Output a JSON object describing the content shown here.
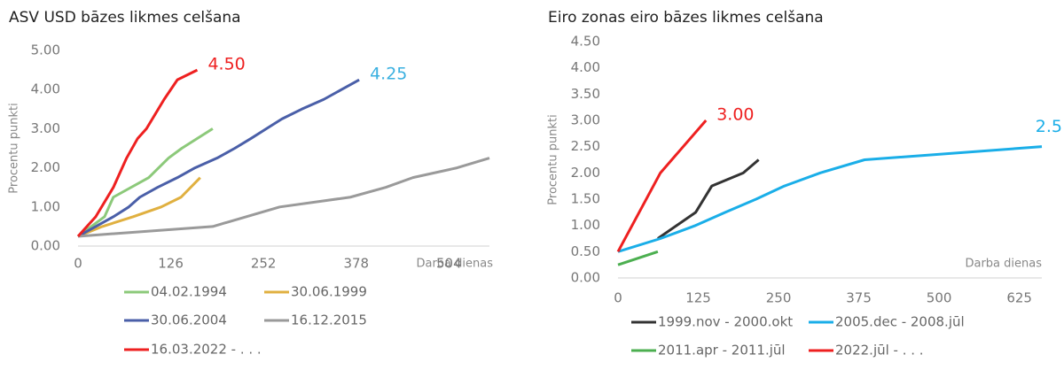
{
  "chart_data": [
    {
      "type": "line",
      "title": "ASV USD bāzes likmes celšana",
      "y_label": "Procentu punkti",
      "x_label": "Darba dienas",
      "xlim": [
        0,
        559
      ],
      "xticks": [
        0,
        126,
        252,
        378,
        504
      ],
      "ylim": [
        0,
        5
      ],
      "yticks": [
        {
          "value": 0,
          "label": "0.00"
        },
        {
          "value": 1,
          "label": "1.00"
        },
        {
          "value": 2,
          "label": "2.00"
        },
        {
          "value": 3,
          "label": "3.00"
        },
        {
          "value": 4,
          "label": "4.00"
        },
        {
          "value": 5,
          "label": "5.00"
        }
      ],
      "series": [
        {
          "name": "04.02.1994",
          "color": "#8cc97a",
          "x": [
            0,
            36,
            48,
            96,
            123,
            141,
            183
          ],
          "values": [
            0.25,
            0.75,
            1.25,
            1.75,
            2.25,
            2.5,
            3.0
          ]
        },
        {
          "name": "30.06.1999",
          "color": "#e0b040",
          "x": [
            0,
            33,
            75,
            113,
            140,
            166
          ],
          "values": [
            0.25,
            0.5,
            0.75,
            1.0,
            1.25,
            1.75
          ]
        },
        {
          "name": "30.06.2004",
          "color": "#4a5fa8",
          "x": [
            0,
            24,
            48,
            69,
            84,
            108,
            135,
            159,
            189,
            213,
            235,
            256,
            277,
            304,
            334,
            358,
            382
          ],
          "values": [
            0.25,
            0.5,
            0.75,
            1.0,
            1.25,
            1.5,
            1.75,
            2.0,
            2.25,
            2.5,
            2.75,
            3.0,
            3.25,
            3.5,
            3.75,
            4.0,
            4.25
          ],
          "end_label": "4.25",
          "end_label_color": "#3ab0e0"
        },
        {
          "name": "16.12.2015",
          "color": "#9a9a9a",
          "x": [
            0,
            183,
            274,
            370,
            418,
            455,
            515,
            559
          ],
          "values": [
            0.25,
            0.5,
            1.0,
            1.25,
            1.5,
            1.75,
            2.0,
            2.25
          ]
        },
        {
          "name": "16.03.2022 - . . .",
          "color": "#ee2020",
          "x": [
            0,
            24,
            48,
            66,
            81,
            93,
            117,
            135,
            162
          ],
          "values": [
            0.25,
            0.75,
            1.5,
            2.25,
            2.75,
            3.0,
            3.75,
            4.25,
            4.5
          ],
          "end_label": "4.50",
          "end_label_color": "#ee2020"
        }
      ]
    },
    {
      "type": "line",
      "title": "Eiro zonas eiro bāzes likmes celšana",
      "y_label": "Procentu punkti",
      "x_label": "Darba dienas",
      "xlim": [
        0,
        660
      ],
      "xticks": [
        0,
        125,
        250,
        375,
        500,
        625
      ],
      "ylim": [
        0,
        4.5
      ],
      "yticks": [
        {
          "value": 0,
          "label": "0.00"
        },
        {
          "value": 0.5,
          "label": "0.50"
        },
        {
          "value": 1,
          "label": "1.00"
        },
        {
          "value": 1.5,
          "label": "1.50"
        },
        {
          "value": 2,
          "label": "2.00"
        },
        {
          "value": 2.5,
          "label": "2.50"
        },
        {
          "value": 3,
          "label": "3.00"
        },
        {
          "value": 3.5,
          "label": "3.50"
        },
        {
          "value": 4,
          "label": "4.00"
        },
        {
          "value": 4.5,
          "label": "4.50"
        }
      ],
      "series": [
        {
          "name": "1999.nov - 2000.okt",
          "color": "#333333",
          "x": [
            62,
            121,
            146,
            195,
            219
          ],
          "values": [
            0.75,
            1.25,
            1.75,
            2.0,
            2.25
          ]
        },
        {
          "name": "2005.dec - 2008.jūl",
          "color": "#1aaee8",
          "x": [
            0,
            66,
            121,
            167,
            215,
            259,
            315,
            384,
            660
          ],
          "values": [
            0.5,
            0.75,
            1.0,
            1.25,
            1.5,
            1.75,
            2.0,
            2.25,
            2.5
          ],
          "end_label": "2.5",
          "end_label_color": "#1aaee8"
        },
        {
          "name": "2011.apr - 2011.jūl",
          "color": "#4caf50",
          "x": [
            0,
            62
          ],
          "values": [
            0.25,
            0.5
          ]
        },
        {
          "name": "2022.jūl - . . .",
          "color": "#ee2020",
          "x": [
            0,
            66,
            137
          ],
          "values": [
            0.5,
            2.0,
            3.0
          ],
          "end_label": "3.00",
          "end_label_color": "#ee2020"
        }
      ]
    }
  ]
}
